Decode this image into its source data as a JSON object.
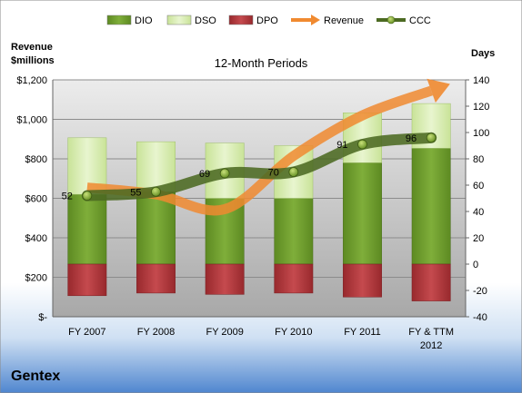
{
  "colors": {
    "dio": "#6e9a2e",
    "dso": "#d9edb0",
    "dpo": "#b0383c",
    "revenue": "#f08a30",
    "ccc": "#4c6a22",
    "plot_bg": "#b9b9b9"
  },
  "legend": [
    {
      "key": "dio",
      "label": "DIO",
      "marker": "bar"
    },
    {
      "key": "dso",
      "label": "DSO",
      "marker": "bar"
    },
    {
      "key": "dpo",
      "label": "DPO",
      "marker": "bar"
    },
    {
      "key": "revenue",
      "label": "Revenue",
      "marker": "arrow"
    },
    {
      "key": "ccc",
      "label": "CCC",
      "marker": "line-dot"
    }
  ],
  "company_label": "Gentex",
  "chart_data": {
    "type": "bar",
    "title": "12-Month Periods",
    "ylabel": "Revenue\n$millions",
    "y2label": "Days",
    "categories": [
      "FY 2007",
      "FY 2008",
      "FY 2009",
      "FY 2010",
      "FY 2011",
      "FY & TTM 2012"
    ],
    "ylim": [
      0,
      1200
    ],
    "y_ticks": [
      0,
      200,
      400,
      600,
      800,
      1000,
      1200
    ],
    "y_tick_labels": [
      "$-",
      "$200",
      "$400",
      "$600",
      "$800",
      "$1,000",
      "$1,200"
    ],
    "y2lim": [
      -40,
      140
    ],
    "y2_ticks": [
      -40,
      -20,
      0,
      20,
      40,
      60,
      80,
      100,
      120,
      140
    ],
    "grid": true,
    "legend_position": "top",
    "series": [
      {
        "name": "DIO",
        "axis": "days",
        "stack": "positive",
        "values": [
          53,
          55,
          50,
          50,
          77,
          88
        ]
      },
      {
        "name": "DSO",
        "axis": "days",
        "stack": "positive",
        "values": [
          43,
          38,
          42,
          40,
          38,
          34
        ]
      },
      {
        "name": "DPO",
        "axis": "days",
        "stack": "negative",
        "values": [
          -24,
          -22,
          -23,
          -22,
          -25,
          -28
        ]
      },
      {
        "name": "Revenue",
        "axis": "revenue",
        "type": "line",
        "values": [
          655,
          620,
          545,
          815,
          1020,
          1145
        ]
      },
      {
        "name": "CCC",
        "axis": "days",
        "type": "line",
        "values": [
          52,
          55,
          69,
          70,
          91,
          96
        ],
        "labels": [
          "52",
          "55",
          "69",
          "70",
          "91",
          "96"
        ]
      }
    ]
  }
}
